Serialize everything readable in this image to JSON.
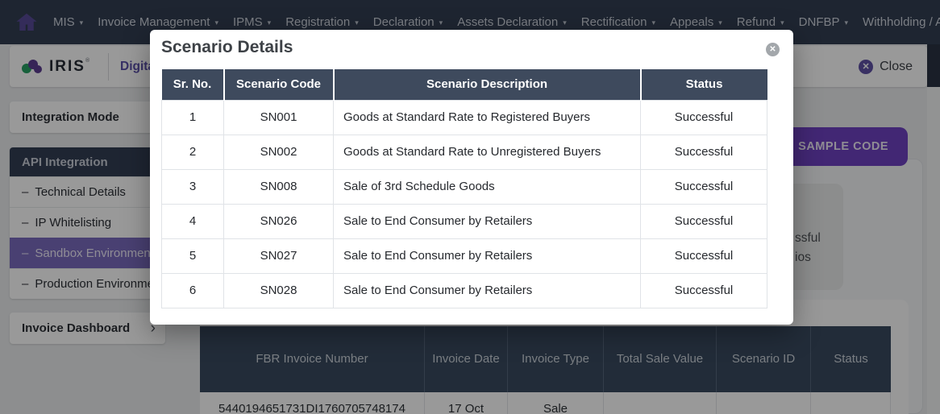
{
  "nav": {
    "items": [
      {
        "label": "MIS",
        "caret": true
      },
      {
        "label": "Invoice Management",
        "caret": true
      },
      {
        "label": "IPMS",
        "caret": true
      },
      {
        "label": "Registration",
        "caret": true
      },
      {
        "label": "Declaration",
        "caret": true
      },
      {
        "label": "Assets Declaration",
        "caret": true
      },
      {
        "label": "Rectification",
        "caret": true
      },
      {
        "label": "Appeals",
        "caret": true
      },
      {
        "label": "Refund",
        "caret": true
      },
      {
        "label": "DNFBP",
        "caret": true
      },
      {
        "label": "Withholding / Advanc",
        "caret": false
      }
    ]
  },
  "header": {
    "logo_text": "IRIS",
    "logo_sup": "®",
    "app_title": "Digital In",
    "close_label": "Close"
  },
  "sidebar": {
    "integration_mode_label": "Integration Mode",
    "api_integration": {
      "title": "API Integration",
      "item_prefix": "–",
      "items": [
        {
          "label": "Technical Details",
          "active": false
        },
        {
          "label": "IP Whitelisting",
          "active": false
        },
        {
          "label": "Sandbox Environment",
          "active": true
        },
        {
          "label": "Production Environment",
          "active": false
        }
      ]
    },
    "invoice_dashboard_label": "Invoice Dashboard",
    "invoice_dashboard_chevron": "›"
  },
  "main": {
    "sample_code_button": "SAMPLE CODE",
    "stat_card_fragments": [
      "ssful",
      "ios"
    ],
    "invoice_table": {
      "columns": [
        "FBR Invoice Number",
        "Invoice Date",
        "Invoice Type",
        "Total Sale Value",
        "Scenario ID",
        "Status"
      ],
      "rows": [
        [
          "5440194651731DI1760705748174",
          "17 Oct",
          "Sale",
          "",
          "",
          ""
        ]
      ]
    }
  },
  "modal": {
    "title": "Scenario Details",
    "close_icon": "✕",
    "table": {
      "columns": [
        "Sr. No.",
        "Scenario Code",
        "Scenario Description",
        "Status"
      ],
      "rows": [
        [
          "1",
          "SN001",
          "Goods at Standard Rate to Registered Buyers",
          "Successful"
        ],
        [
          "2",
          "SN002",
          "Goods at Standard Rate to Unregistered Buyers",
          "Successful"
        ],
        [
          "3",
          "SN008",
          "Sale of 3rd Schedule Goods",
          "Successful"
        ],
        [
          "4",
          "SN026",
          "Sale to End Consumer by Retailers",
          "Successful"
        ],
        [
          "5",
          "SN027",
          "Sale to End Consumer by Retailers",
          "Successful"
        ],
        [
          "6",
          "SN028",
          "Sale to End Consumer by Retailers",
          "Successful"
        ]
      ]
    }
  },
  "colors": {
    "nav_bg": "#323e52",
    "accent_purple": "#6f42c1",
    "active_sidebar_item": "#7b6cbf",
    "modal_table_header": "#3e4a5d",
    "invoice_table_header": "#39485d",
    "brand_green": "#27a163",
    "brand_purple": "#5c3d91"
  }
}
